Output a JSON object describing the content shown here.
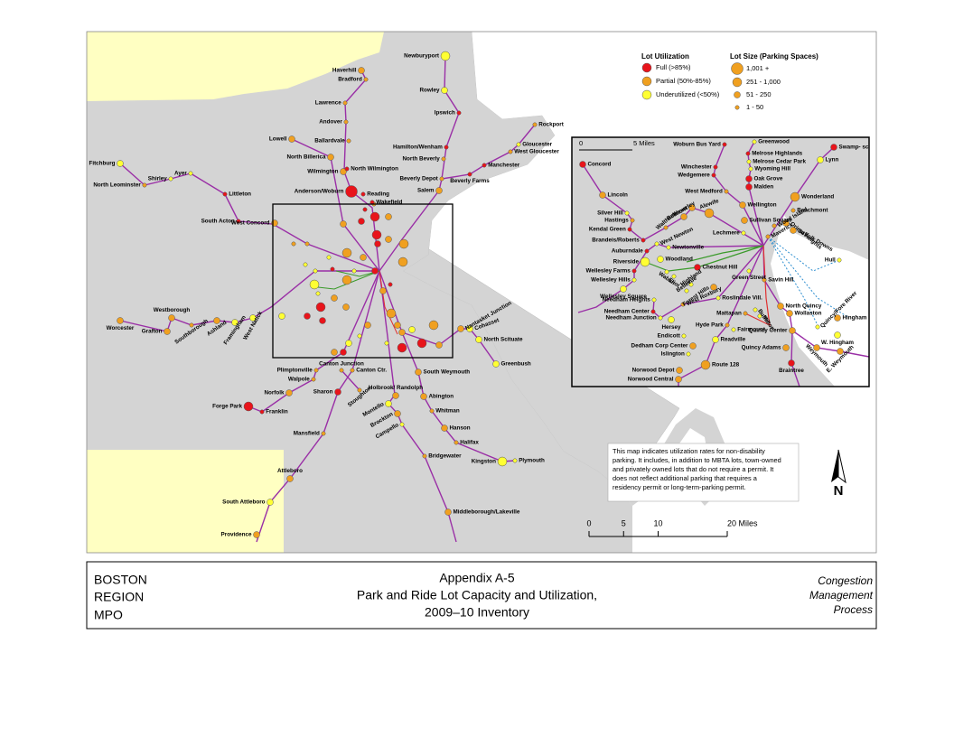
{
  "legend": {
    "utilization_title": "Lot Utilization",
    "utilization": [
      "Full (>85%)",
      "Partial (50%-85%)",
      "Underutilized (<50%)"
    ],
    "size_title": "Lot Size (Parking Spaces)",
    "sizes": [
      "1,001 +",
      "251 - 1,000",
      "51 - 250",
      "1 - 50"
    ]
  },
  "main_map": {
    "stations": [
      "Haverhill",
      "Bradford",
      "Newburyport",
      "Rowley",
      "Ipswich",
      "Rockport",
      "Gloucester",
      "West Gloucester",
      "Lawrence",
      "Andover",
      "Lowell",
      "Ballardvale",
      "North Billerica",
      "Wilmington",
      "North Wilmington",
      "Hamilton/Wenham",
      "North Beverly",
      "Manchester",
      "Beverly Depot",
      "Beverly Farms",
      "Salem",
      "Anderson/Woburn",
      "Reading",
      "Wakefield",
      "Fitchburg",
      "Shirley",
      "Ayer",
      "North Leominster",
      "Littleton",
      "South Acton",
      "West Concord",
      "Worcester",
      "Westborough",
      "Grafton",
      "Southborough",
      "Ashland",
      "Framingham",
      "West Natick",
      "Nantasket Junction",
      "Cohasset",
      "North Scituate",
      "Greenbush",
      "Plimptonville",
      "Walpole",
      "Canton Junction",
      "Canton Ctr.",
      "South Weymouth",
      "Holbrook/ Randolph",
      "Norfolk",
      "Sharon",
      "Stoughton",
      "Abington",
      "Montello",
      "Whitman",
      "Brockton",
      "Campello",
      "Hanson",
      "Forge Park",
      "Franklin",
      "Mansfield",
      "Halifax",
      "Bridgewater",
      "Kingston",
      "Plymouth",
      "Attleboro",
      "South Attleboro",
      "Middleborough/Lakeville",
      "Providence"
    ]
  },
  "inset_map": {
    "stations": [
      "Concord",
      "Woburn Bus Yard",
      "Greenwood",
      "Swamp- scott",
      "Melrose Highlands",
      "Melrose Cedar Park",
      "Wyoming Hill",
      "Winchester",
      "Wedgemere",
      "Oak Grove",
      "Malden",
      "Lynn",
      "West Medford",
      "Lincoln",
      "Wellington",
      "Wonderland",
      "Beachmont",
      "Silver Hill",
      "Hastings",
      "Kendal Green",
      "Brandeis/Roberts",
      "Waltham",
      "Waverley",
      "Belmont",
      "Alewife",
      "Sullivan Square",
      "Suffolk Downs",
      "Orient Heights",
      "Wood Island",
      "Maverick",
      "Lechmere",
      "West Newton",
      "Auburndale",
      "Newtonville",
      "Riverside",
      "Woodland",
      "Wellesley Farms",
      "Wellesley Hills",
      "Wellesley Square",
      "Waban",
      "Eliot",
      "Chestnut Hill",
      "Green Street",
      "Highland",
      "Bellevue",
      "Forest Hills",
      "Hull",
      "Savin Hill",
      "Needham Heights",
      "West Roxbury",
      "Roslindale Vill.",
      "Needham Center",
      "Needham Junction",
      "Hersey",
      "Mattapan",
      "Butler",
      "Milton",
      "North Quincy",
      "Wollaston",
      "Hyde Park",
      "Fairmount",
      "Quincy Center",
      "Quincy/Fore River",
      "Hingham",
      "W. Hingham",
      "Readville",
      "Endicott",
      "Dedham Corp Center",
      "Islington",
      "Quincy Adams",
      "Route 128",
      "Braintree",
      "Weymouth",
      "E. Weymouth",
      "Norwood Depot",
      "Norwood Central"
    ],
    "scale_labels": [
      "0",
      "5 Miles"
    ]
  },
  "note": [
    "This map indicates utilization rates for non-disability",
    "parking. It includes, in addition to MBTA lots, town-owned",
    "and privately owned lots that do not require a permit. It",
    "does not reflect additional parking that requires a",
    "residency permit or long-term-parking permit."
  ],
  "scale_bar": {
    "ticks": [
      0,
      5,
      10,
      {
        "value": 20,
        "label": "20 Miles"
      }
    ]
  },
  "north_arrow": "N",
  "footer": {
    "left": [
      "BOSTON",
      "REGION",
      "MPO"
    ],
    "center": [
      "Appendix A-5",
      "Park and Ride Lot Capacity and Utilization,",
      "2009–10 Inventory"
    ],
    "right": [
      "Congestion",
      "Management",
      "Process"
    ]
  }
}
